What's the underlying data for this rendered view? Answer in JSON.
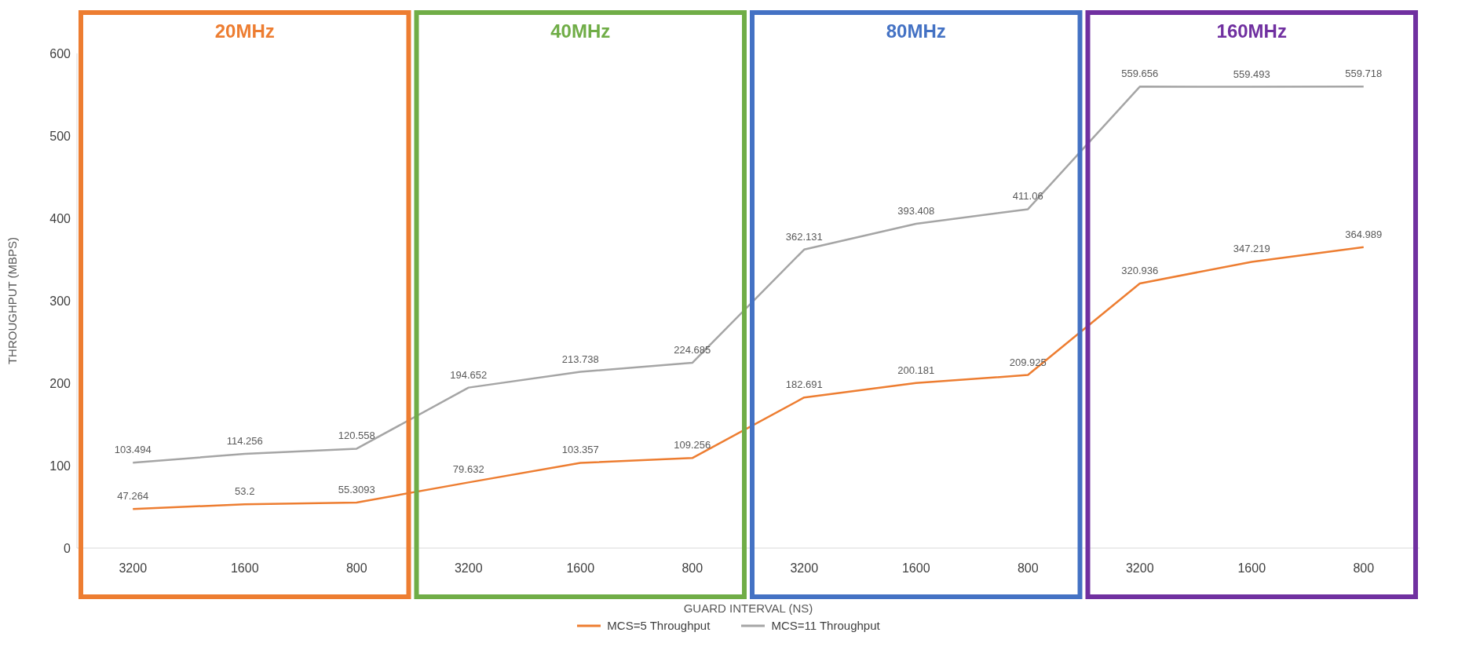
{
  "chart_data": {
    "type": "line",
    "xlabel": "GUARD INTERVAL (NS)",
    "ylabel": "THROUGHPUT (MBPS)",
    "categories": [
      "3200",
      "1600",
      "800",
      "3200",
      "1600",
      "800",
      "3200",
      "1600",
      "800",
      "3200",
      "1600",
      "800"
    ],
    "series": [
      {
        "name": "MCS=5 Throughput",
        "color": "#ed7d31",
        "values": [
          47.264,
          53.2,
          55.3093,
          79.632,
          103.357,
          109.256,
          182.691,
          200.181,
          209.925,
          320.936,
          347.219,
          364.989
        ]
      },
      {
        "name": "MCS=11 Throughput",
        "color": "#a5a5a5",
        "values": [
          103.494,
          114.256,
          120.558,
          194.652,
          213.738,
          224.685,
          362.131,
          393.408,
          411.06,
          559.656,
          559.493,
          559.718
        ]
      }
    ],
    "ylim": [
      0,
      600
    ],
    "yticks": [
      0,
      100,
      200,
      300,
      400,
      500,
      600
    ],
    "data_labels": true,
    "legend": "bottom",
    "marker": "none",
    "line_style": "solid",
    "annotations": [
      "20MHz",
      "40MHz",
      "80MHz",
      "160MHz"
    ]
  }
}
